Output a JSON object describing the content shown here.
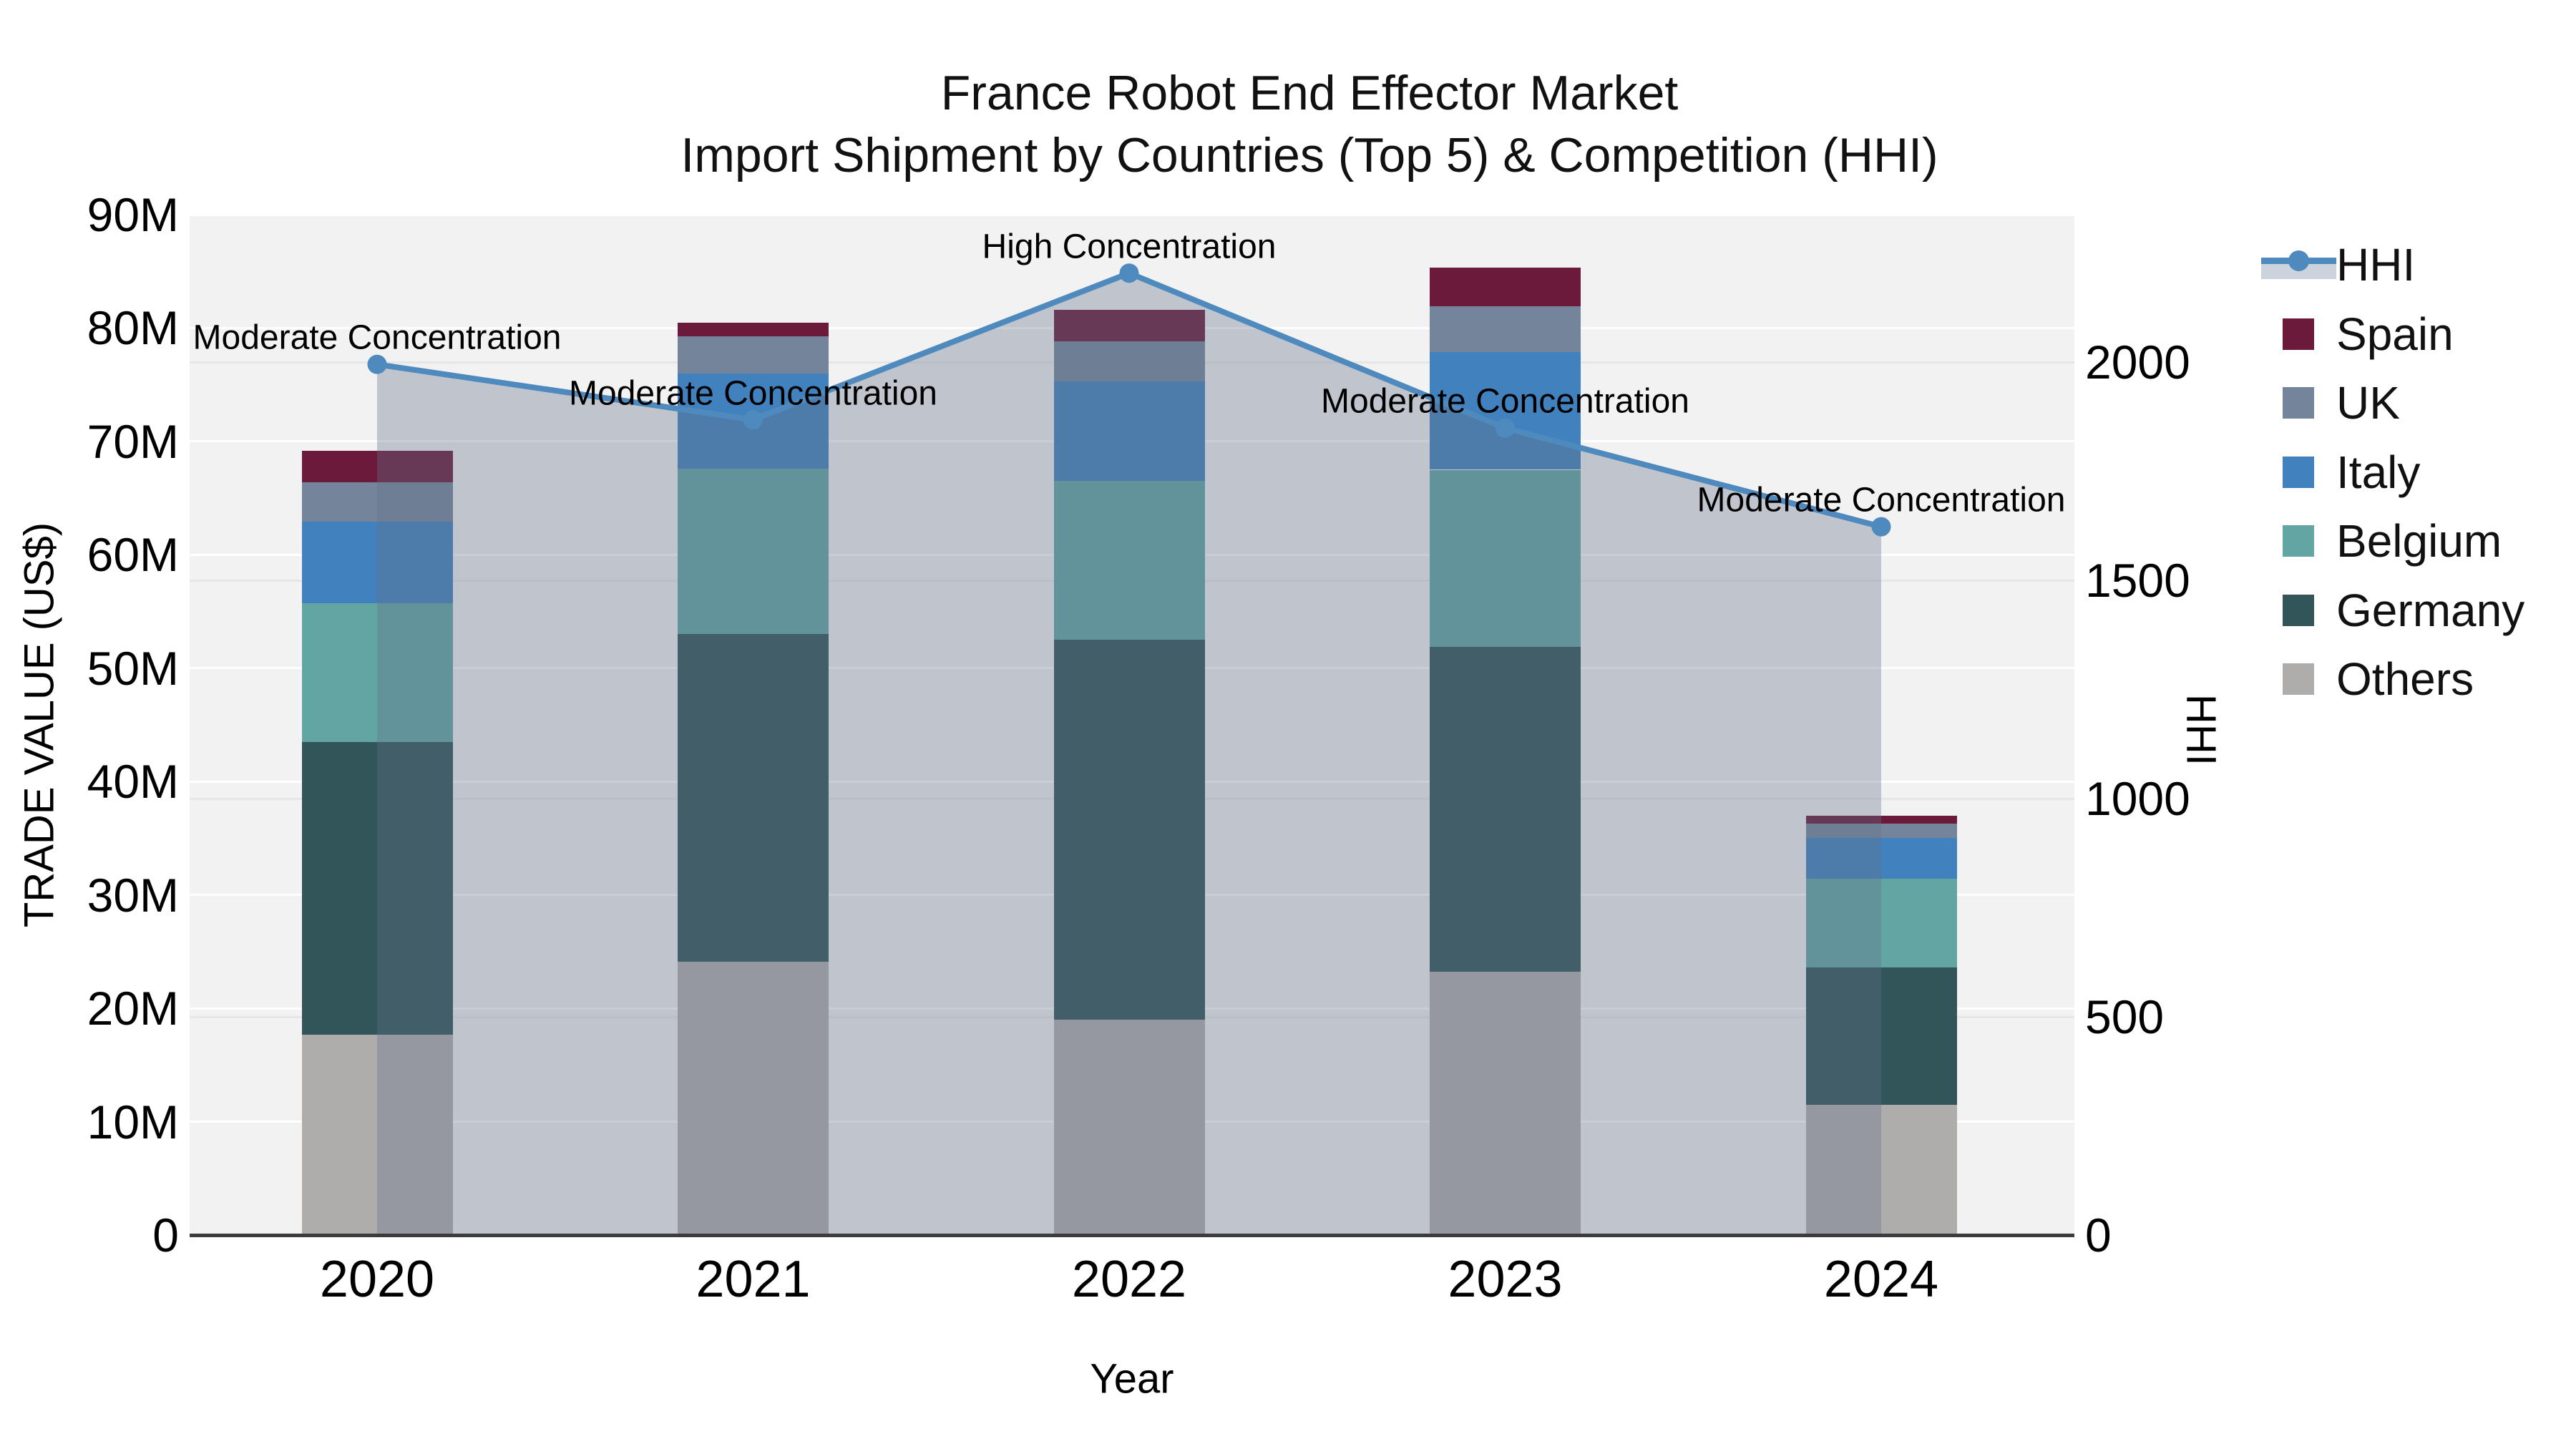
{
  "title": {
    "line1": "France Robot End Effector Market",
    "line2": "Import Shipment by Countries (Top 5) & Competition (HHI)"
  },
  "chart_data": {
    "type": "stacked-bar+line",
    "categories": [
      "2020",
      "2021",
      "2022",
      "2023",
      "2024"
    ],
    "bar_unit": "trade value, millions US$ (left axis)",
    "series": [
      {
        "name": "Others",
        "color": "#AFACAC",
        "values": [
          17.7,
          24.1,
          19.0,
          23.2,
          11.5
        ]
      },
      {
        "name": "Germany",
        "color": "#315558",
        "values": [
          25.8,
          28.9,
          33.5,
          28.7,
          12.1
        ]
      },
      {
        "name": "Belgium",
        "color": "#62A5A3",
        "values": [
          12.2,
          14.6,
          14.0,
          15.6,
          7.8
        ]
      },
      {
        "name": "Italy",
        "color": "#4181BD",
        "values": [
          7.2,
          8.4,
          8.8,
          10.4,
          3.6
        ]
      },
      {
        "name": "UK",
        "color": "#74849B",
        "values": [
          3.5,
          3.3,
          3.5,
          4.0,
          1.3
        ]
      },
      {
        "name": "Spain",
        "color": "#6B1A3C",
        "values": [
          2.8,
          1.2,
          2.8,
          3.4,
          0.7
        ]
      }
    ],
    "bar_totals": [
      69.2,
      80.5,
      81.6,
      85.3,
      37.0
    ],
    "line": {
      "name": "HHI",
      "axis": "right",
      "color": "#4E8ABE",
      "fill_color": "rgba(100,114,138,0.35)",
      "values": [
        1995,
        1868,
        2204,
        1849,
        1623
      ]
    },
    "annotations": [
      {
        "x": "2020",
        "text": "Moderate Concentration"
      },
      {
        "x": "2021",
        "text": "Moderate Concentration"
      },
      {
        "x": "2022",
        "text": "High Concentration"
      },
      {
        "x": "2023",
        "text": "Moderate Concentration"
      },
      {
        "x": "2024",
        "text": "Moderate Concentration"
      }
    ],
    "y_left": {
      "label": "TRADE VALUE (US$)",
      "ticks": [
        "0",
        "10M",
        "20M",
        "30M",
        "40M",
        "50M",
        "60M",
        "70M",
        "80M",
        "90M"
      ],
      "tick_values": [
        0,
        10,
        20,
        30,
        40,
        50,
        60,
        70,
        80,
        90
      ],
      "range": [
        0,
        90
      ]
    },
    "y_right": {
      "label": "HHI",
      "ticks": [
        "0",
        "500",
        "1000",
        "1500",
        "2000"
      ],
      "tick_values": [
        0,
        500,
        1000,
        1500,
        2000
      ],
      "range": [
        0,
        2338
      ]
    },
    "x": {
      "label": "Year"
    },
    "grid": true,
    "legend_position": "right"
  },
  "legend": {
    "items": [
      {
        "label": "HHI",
        "type": "line",
        "color": "#4E8ABE"
      },
      {
        "label": "Spain",
        "type": "square",
        "color": "#6B1A3C"
      },
      {
        "label": "UK",
        "type": "square",
        "color": "#74849B"
      },
      {
        "label": "Italy",
        "type": "square",
        "color": "#4181BD"
      },
      {
        "label": "Belgium",
        "type": "square",
        "color": "#62A5A3"
      },
      {
        "label": "Germany",
        "type": "square",
        "color": "#315558"
      },
      {
        "label": "Others",
        "type": "square",
        "color": "#AFACAC"
      }
    ]
  },
  "colors": {
    "figure_bg": "#ffffff",
    "plot_bg": "#f2f2f2",
    "axis_line": "#3c3c3c",
    "grid_left": "#ffffff",
    "grid_right": "#e6e6e9",
    "text": "#000000"
  }
}
